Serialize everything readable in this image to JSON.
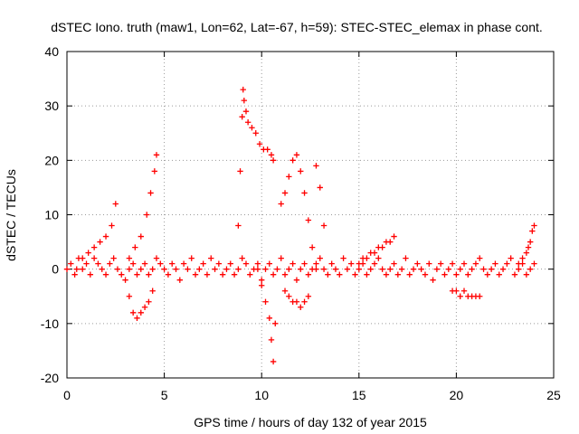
{
  "chart_data": {
    "type": "scatter",
    "title": "dSTEC Iono. truth (maw1, Lon=62, Lat=-67, h=59): STEC-STEC_elemax in phase cont.",
    "xlabel": "GPS time / hours of day 132 of year 2015",
    "ylabel": "dSTEC  / TECUs",
    "xlim": [
      0,
      25
    ],
    "ylim": [
      -20,
      40
    ],
    "xticks": [
      0,
      5,
      10,
      15,
      20,
      25
    ],
    "yticks": [
      -20,
      -10,
      0,
      10,
      20,
      30,
      40
    ],
    "grid": true,
    "marker": "+",
    "color": "#ff0000",
    "series": [
      {
        "x": [
          0.0,
          0.2,
          0.4,
          0.6,
          0.8,
          1.0,
          1.2,
          1.4,
          1.6,
          1.8,
          2.0,
          2.2,
          2.4,
          2.6,
          2.8,
          3.0,
          3.2,
          3.4,
          3.6,
          3.8,
          4.0,
          4.2,
          4.4,
          4.6,
          4.8,
          5.0,
          5.2,
          5.4,
          5.6,
          5.8,
          6.0,
          6.2,
          6.4,
          6.6,
          6.8,
          7.0,
          7.2,
          7.4,
          7.6,
          7.8,
          8.0,
          8.2,
          8.4,
          8.6,
          8.8,
          9.0,
          9.2,
          9.4,
          9.6,
          9.8,
          10.0,
          10.2,
          10.4,
          10.6,
          10.8,
          11.0,
          11.2,
          11.4,
          11.6,
          11.8,
          12.0,
          12.2,
          12.4,
          12.6,
          12.8,
          13.0,
          13.2,
          13.4,
          13.6,
          13.8,
          14.0,
          14.2,
          14.4,
          14.6,
          14.8,
          15.0,
          15.2,
          15.4,
          15.6,
          15.8,
          16.0,
          16.2,
          16.4,
          16.6,
          16.8,
          17.0,
          17.2,
          17.4,
          17.6,
          17.8,
          18.0,
          18.2,
          18.4,
          18.6,
          18.8,
          19.0,
          19.2,
          19.4,
          19.6,
          19.8,
          20.0,
          20.2,
          20.4,
          20.6,
          20.8,
          21.0,
          21.2,
          21.4,
          21.6,
          21.8,
          22.0,
          22.2,
          22.4,
          22.6,
          22.8,
          23.0,
          23.2,
          23.4,
          23.6,
          23.8,
          24.0
        ],
        "y": [
          0,
          1,
          -1,
          2,
          0,
          1,
          -1,
          2,
          1,
          0,
          -1,
          1,
          2,
          0,
          -1,
          -2,
          0,
          1,
          -1,
          0,
          1,
          -1,
          0,
          2,
          1,
          0,
          -1,
          1,
          0,
          -2,
          1,
          0,
          2,
          -1,
          0,
          1,
          -1,
          2,
          0,
          1,
          -1,
          0,
          1,
          -1,
          0,
          2,
          1,
          -1,
          0,
          1,
          -2,
          0,
          1,
          -1,
          0,
          2,
          -1,
          0,
          1,
          -2,
          0,
          1,
          -1,
          0,
          1,
          2,
          0,
          -1,
          1,
          0,
          -1,
          2,
          0,
          1,
          -1,
          0,
          1,
          -1,
          0,
          1,
          2,
          0,
          -1,
          0,
          1,
          -1,
          0,
          2,
          -1,
          0,
          1,
          0,
          -1,
          1,
          -2,
          0,
          1,
          -1,
          0,
          1,
          -1,
          0,
          1,
          -1,
          0,
          1,
          2,
          0,
          -1,
          0,
          1,
          -1,
          0,
          1,
          2,
          -1,
          0,
          1,
          -1,
          0,
          1
        ]
      },
      {
        "x": [
          0.5,
          0.8,
          1.1,
          1.4,
          1.7,
          2.0,
          2.3,
          2.5,
          3.2,
          3.5,
          3.8,
          4.1,
          4.3,
          4.5,
          4.6
        ],
        "y": [
          0,
          2,
          3,
          4,
          5,
          6,
          8,
          12,
          2,
          4,
          6,
          10,
          14,
          18,
          21
        ]
      },
      {
        "x": [
          3.2,
          3.4,
          3.6,
          3.8,
          4.0,
          4.2,
          4.4
        ],
        "y": [
          -5,
          -8,
          -9,
          -8,
          -7,
          -6,
          -4
        ]
      },
      {
        "x": [
          8.8,
          8.9,
          9.0,
          9.05,
          9.1,
          9.2,
          9.3,
          9.5,
          9.7,
          9.9,
          10.1,
          10.3,
          10.5,
          10.6
        ],
        "y": [
          8,
          18,
          28,
          33,
          31,
          29,
          27,
          26,
          25,
          23,
          22,
          22,
          21,
          20
        ]
      },
      {
        "x": [
          9.8,
          10.0,
          10.2,
          10.4,
          10.5,
          10.6,
          10.7
        ],
        "y": [
          0,
          -3,
          -6,
          -9,
          -13,
          -17,
          -10
        ]
      },
      {
        "x": [
          11.0,
          11.2,
          11.4,
          11.6,
          11.8,
          12.0,
          12.2,
          12.4,
          12.6,
          12.8
        ],
        "y": [
          12,
          14,
          17,
          20,
          21,
          18,
          14,
          9,
          4,
          0
        ]
      },
      {
        "x": [
          11.2,
          11.4,
          11.6,
          11.8,
          12.0,
          12.2,
          12.4
        ],
        "y": [
          -4,
          -5,
          -6,
          -6,
          -7,
          -6,
          -5
        ]
      },
      {
        "x": [
          12.8,
          13.0,
          13.2
        ],
        "y": [
          19,
          15,
          8
        ]
      },
      {
        "x": [
          15.0,
          15.2,
          15.4,
          15.6,
          15.8,
          16.0,
          16.2,
          16.4,
          16.6,
          16.8
        ],
        "y": [
          1,
          2,
          2,
          3,
          3,
          4,
          4,
          5,
          5,
          6
        ]
      },
      {
        "x": [
          19.8,
          20.0,
          20.2,
          20.4,
          20.6,
          20.8,
          21.0,
          21.2
        ],
        "y": [
          -4,
          -4,
          -5,
          -4,
          -5,
          -5,
          -5,
          -5
        ]
      },
      {
        "x": [
          23.2,
          23.4,
          23.6,
          23.7,
          23.8,
          23.9,
          24.0
        ],
        "y": [
          1,
          2,
          3,
          4,
          5,
          7,
          8
        ]
      }
    ]
  }
}
